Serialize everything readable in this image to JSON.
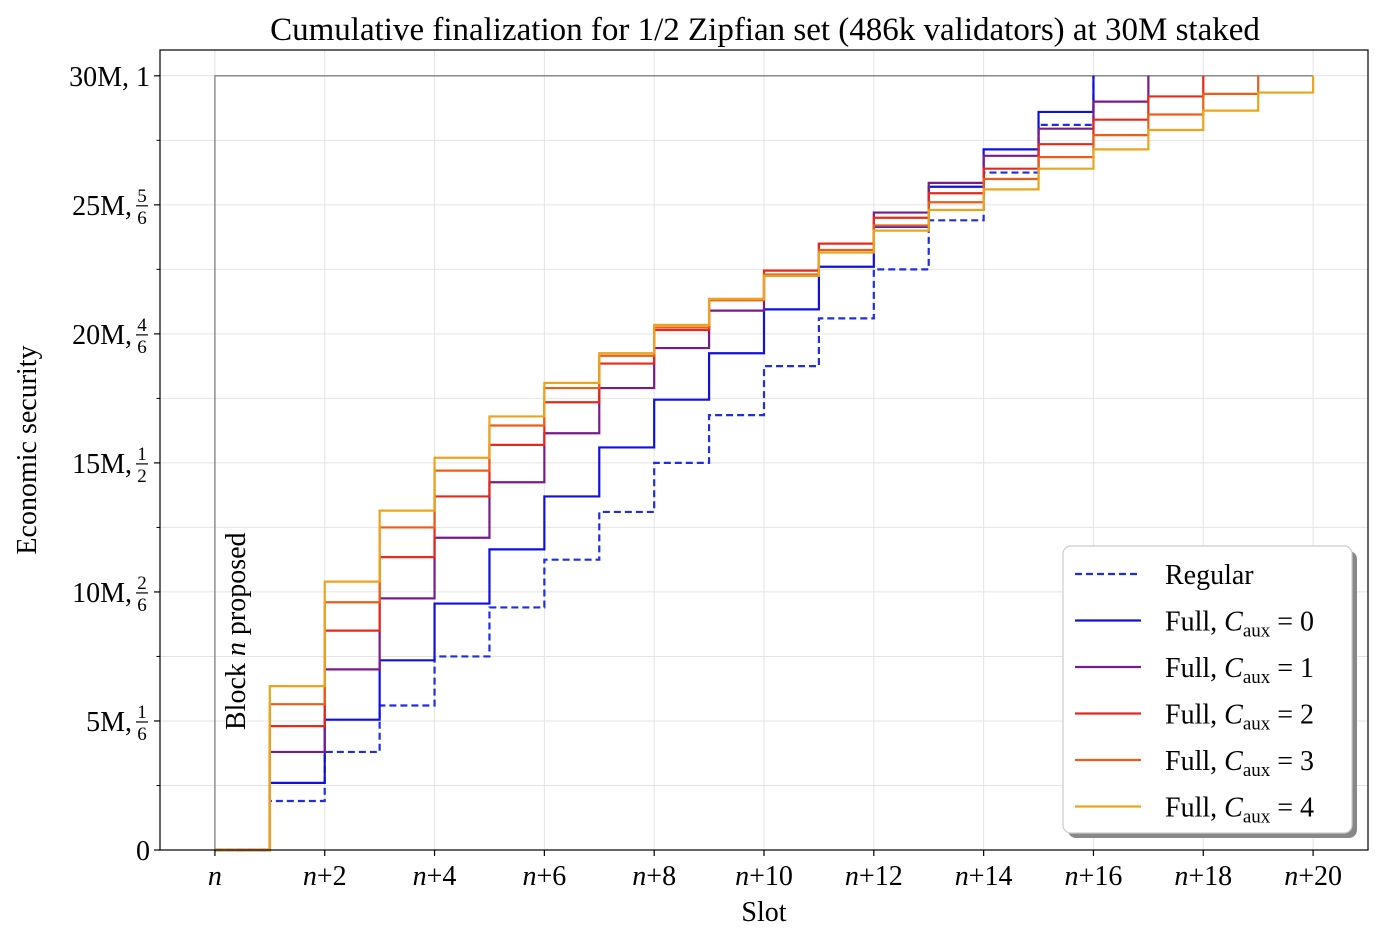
{
  "chart_data": {
    "type": "line",
    "step": "post",
    "title": "Cumulative finalization for 1/2 Zipfian set (486k validators) at 30M staked",
    "xlabel": "Slot",
    "ylabel": "Economic security",
    "xlim": [
      -1,
      21
    ],
    "ylim": [
      0,
      31
    ],
    "x_ticks": [
      {
        "value": 0,
        "var": "n",
        "suffix": ""
      },
      {
        "value": 2,
        "var": "n",
        "suffix": "+2"
      },
      {
        "value": 4,
        "var": "n",
        "suffix": "+4"
      },
      {
        "value": 6,
        "var": "n",
        "suffix": "+6"
      },
      {
        "value": 8,
        "var": "n",
        "suffix": "+8"
      },
      {
        "value": 10,
        "var": "n",
        "suffix": "+10"
      },
      {
        "value": 12,
        "var": "n",
        "suffix": "+12"
      },
      {
        "value": 14,
        "var": "n",
        "suffix": "+14"
      },
      {
        "value": 16,
        "var": "n",
        "suffix": "+16"
      },
      {
        "value": 18,
        "var": "n",
        "suffix": "+18"
      },
      {
        "value": 20,
        "var": "n",
        "suffix": "+20"
      }
    ],
    "y_ticks": [
      {
        "value": 0,
        "label": "0",
        "num": "",
        "den": ""
      },
      {
        "value": 5,
        "label": "5M, ",
        "num": "1",
        "den": "6"
      },
      {
        "value": 10,
        "label": "10M, ",
        "num": "2",
        "den": "6"
      },
      {
        "value": 15,
        "label": "15M, ",
        "num": "1",
        "den": "2"
      },
      {
        "value": 20,
        "label": "20M, ",
        "num": "4",
        "den": "6"
      },
      {
        "value": 25,
        "label": "25M, ",
        "num": "5",
        "den": "6"
      },
      {
        "value": 30,
        "label": "30M, 1",
        "num": "",
        "den": ""
      }
    ],
    "y_minor_ticks": [
      2.5,
      7.5,
      12.5,
      17.5,
      22.5,
      27.5
    ],
    "grid": true,
    "legend": "lower-right",
    "annotations": [
      {
        "text_pre": "Block ",
        "text_var": "n",
        "text_post": " proposed",
        "x": 0
      }
    ],
    "reference_line": {
      "x": [
        0,
        0,
        20
      ],
      "y": [
        0,
        30,
        30
      ],
      "color": "#7f7f7f"
    },
    "x": [
      0,
      1,
      2,
      3,
      4,
      5,
      6,
      7,
      8,
      9,
      10,
      11,
      12,
      13,
      14,
      15,
      16,
      17,
      18,
      19,
      20
    ],
    "series": [
      {
        "legend": "Regular",
        "color": "#1f2ee6",
        "dash": true,
        "values": [
          0,
          1.9,
          3.8,
          5.6,
          7.5,
          9.4,
          11.25,
          13.1,
          15.0,
          16.85,
          18.75,
          20.6,
          22.5,
          24.4,
          26.25,
          28.1,
          30,
          null,
          null,
          null,
          null
        ]
      },
      {
        "legend": "Full, ",
        "sym": "C",
        "sub": "aux",
        "eq": " = 0",
        "color": "#1010e0",
        "dash": false,
        "values": [
          0,
          2.6,
          5.05,
          7.35,
          9.55,
          11.65,
          13.7,
          15.6,
          17.45,
          19.25,
          20.95,
          22.6,
          24.15,
          25.7,
          27.15,
          28.6,
          30,
          null,
          null,
          null,
          null
        ]
      },
      {
        "legend": "Full, ",
        "sym": "C",
        "sub": "aux",
        "eq": " = 1",
        "color": "#7a1b8c",
        "dash": false,
        "values": [
          0,
          3.8,
          7.0,
          9.75,
          12.1,
          14.25,
          16.15,
          17.9,
          19.45,
          20.9,
          22.25,
          23.5,
          24.7,
          25.85,
          26.9,
          27.95,
          29.0,
          30,
          null,
          null,
          null
        ]
      },
      {
        "legend": "Full, ",
        "sym": "C",
        "sub": "aux",
        "eq": " = 2",
        "color": "#e8281a",
        "dash": false,
        "values": [
          0,
          4.8,
          8.5,
          11.35,
          13.7,
          15.7,
          17.35,
          18.85,
          20.15,
          21.35,
          22.45,
          23.5,
          24.5,
          25.45,
          26.4,
          27.35,
          28.3,
          29.2,
          30,
          null,
          null
        ]
      },
      {
        "legend": "Full, ",
        "sym": "C",
        "sub": "aux",
        "eq": " = 3",
        "color": "#ee5d17",
        "dash": false,
        "values": [
          0,
          5.65,
          9.6,
          12.5,
          14.7,
          16.45,
          17.9,
          19.15,
          20.25,
          21.3,
          22.3,
          23.25,
          24.2,
          25.1,
          26.0,
          26.85,
          27.7,
          28.5,
          29.3,
          30,
          null
        ]
      },
      {
        "legend": "Full, ",
        "sym": "C",
        "sub": "aux",
        "eq": " = 4",
        "color": "#eca41c",
        "dash": false,
        "values": [
          0,
          6.35,
          10.4,
          13.15,
          15.2,
          16.8,
          18.1,
          19.25,
          20.35,
          21.35,
          22.25,
          23.15,
          24.0,
          24.8,
          25.6,
          26.4,
          27.15,
          27.9,
          28.65,
          29.35,
          30
        ]
      }
    ]
  }
}
